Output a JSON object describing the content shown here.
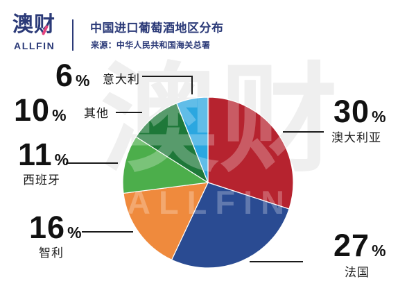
{
  "header": {
    "logo_text": "澳财",
    "logo_subtext": "ALLFIN",
    "logo_color": "#2B3A78",
    "logo_accent_color": "#E5447E",
    "title": "中国进口葡萄酒地区分布",
    "source": "来源：中华人民共和国海关总署"
  },
  "watermark": {
    "line1": "澳财",
    "line2": "ALLFIN"
  },
  "chart_data": {
    "type": "pie",
    "title": "中国进口葡萄酒地区分布",
    "source": "来源：中华人民共和国海关总署",
    "unit": "%",
    "direction": "clockwise",
    "start_angle_deg": 0,
    "legend": "none (direct labels with leader lines)",
    "slices": [
      {
        "id": "australia",
        "name": "澳大利亚",
        "value": 30,
        "color": "#B6232F"
      },
      {
        "id": "france",
        "name": "法国",
        "value": 27,
        "color": "#2A4B92"
      },
      {
        "id": "chile",
        "name": "智利",
        "value": 16,
        "color": "#EF8A3D"
      },
      {
        "id": "spain",
        "name": "西班牙",
        "value": 11,
        "color": "#4CAE4B"
      },
      {
        "id": "others",
        "name": "其他",
        "value": 10,
        "color": "#1E7839"
      },
      {
        "id": "italy",
        "name": "意大利",
        "value": 6,
        "color": "#2BA7E0"
      }
    ]
  }
}
